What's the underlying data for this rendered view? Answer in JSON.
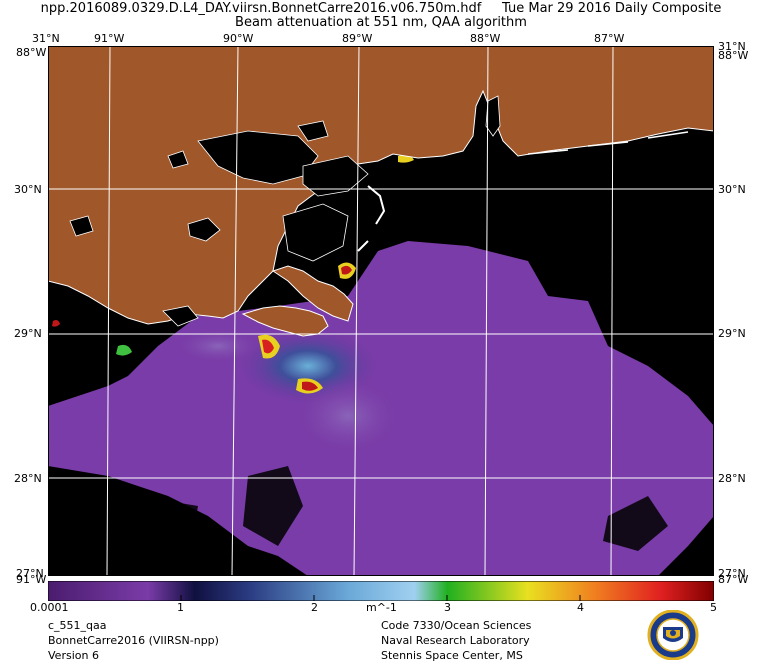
{
  "header": {
    "line1": "npp.2016089.0329.D.L4_DAY.viirsn.BonnetCarre2016.v06.750m.hdf     Tue Mar 29 2016 Daily Composite",
    "line2": "Beam attenuation at 551 nm, QAA algorithm"
  },
  "map": {
    "lon_ticks": [
      {
        "label": "91°W",
        "lon": -91
      },
      {
        "label": "90°W",
        "lon": -90
      },
      {
        "label": "89°W",
        "lon": -89
      },
      {
        "label": "88°W",
        "lon": -88
      },
      {
        "label": "87°W",
        "lon": -87
      }
    ],
    "lat_ticks": [
      {
        "label": "30°N",
        "lat": 30
      },
      {
        "label": "29°N",
        "lat": 29
      },
      {
        "label": "28°N",
        "lat": 28
      }
    ],
    "corner_labels": {
      "top_left_lat": "31°N",
      "top_right_lat": "31°N",
      "top_left_lon": "88°W",
      "top_right_lon": "88°W",
      "bottom_left_lat": "27°N",
      "bottom_left_lon": "91°W",
      "bottom_right_lat": "27°N",
      "bottom_right_lon": "87°W"
    },
    "colors": {
      "land": "#a0572a",
      "nodata": "#000000",
      "low_attenuation": "#7a3ca8",
      "coast": "#ffffff",
      "grid": "#ffffff"
    }
  },
  "colorbar": {
    "ticks": [
      {
        "label": "0.0001",
        "value": 0.0001
      },
      {
        "label": "1",
        "value": 1
      },
      {
        "label": "2",
        "value": 2
      },
      {
        "label": "3",
        "value": 3
      },
      {
        "label": "4",
        "value": 4
      },
      {
        "label": "5",
        "value": 5
      }
    ],
    "units": "m^-1",
    "min": 0.0001,
    "max": 5
  },
  "footer": {
    "left": [
      "c_551_qaa",
      "BonnetCarre2016 (VIIRSN-npp)",
      "Version 6"
    ],
    "right": [
      "Code 7330/Ocean Sciences",
      "Naval Research Laboratory",
      "Stennis Space Center, MS"
    ]
  },
  "logo": {
    "name": "nrl-seal-logo"
  }
}
